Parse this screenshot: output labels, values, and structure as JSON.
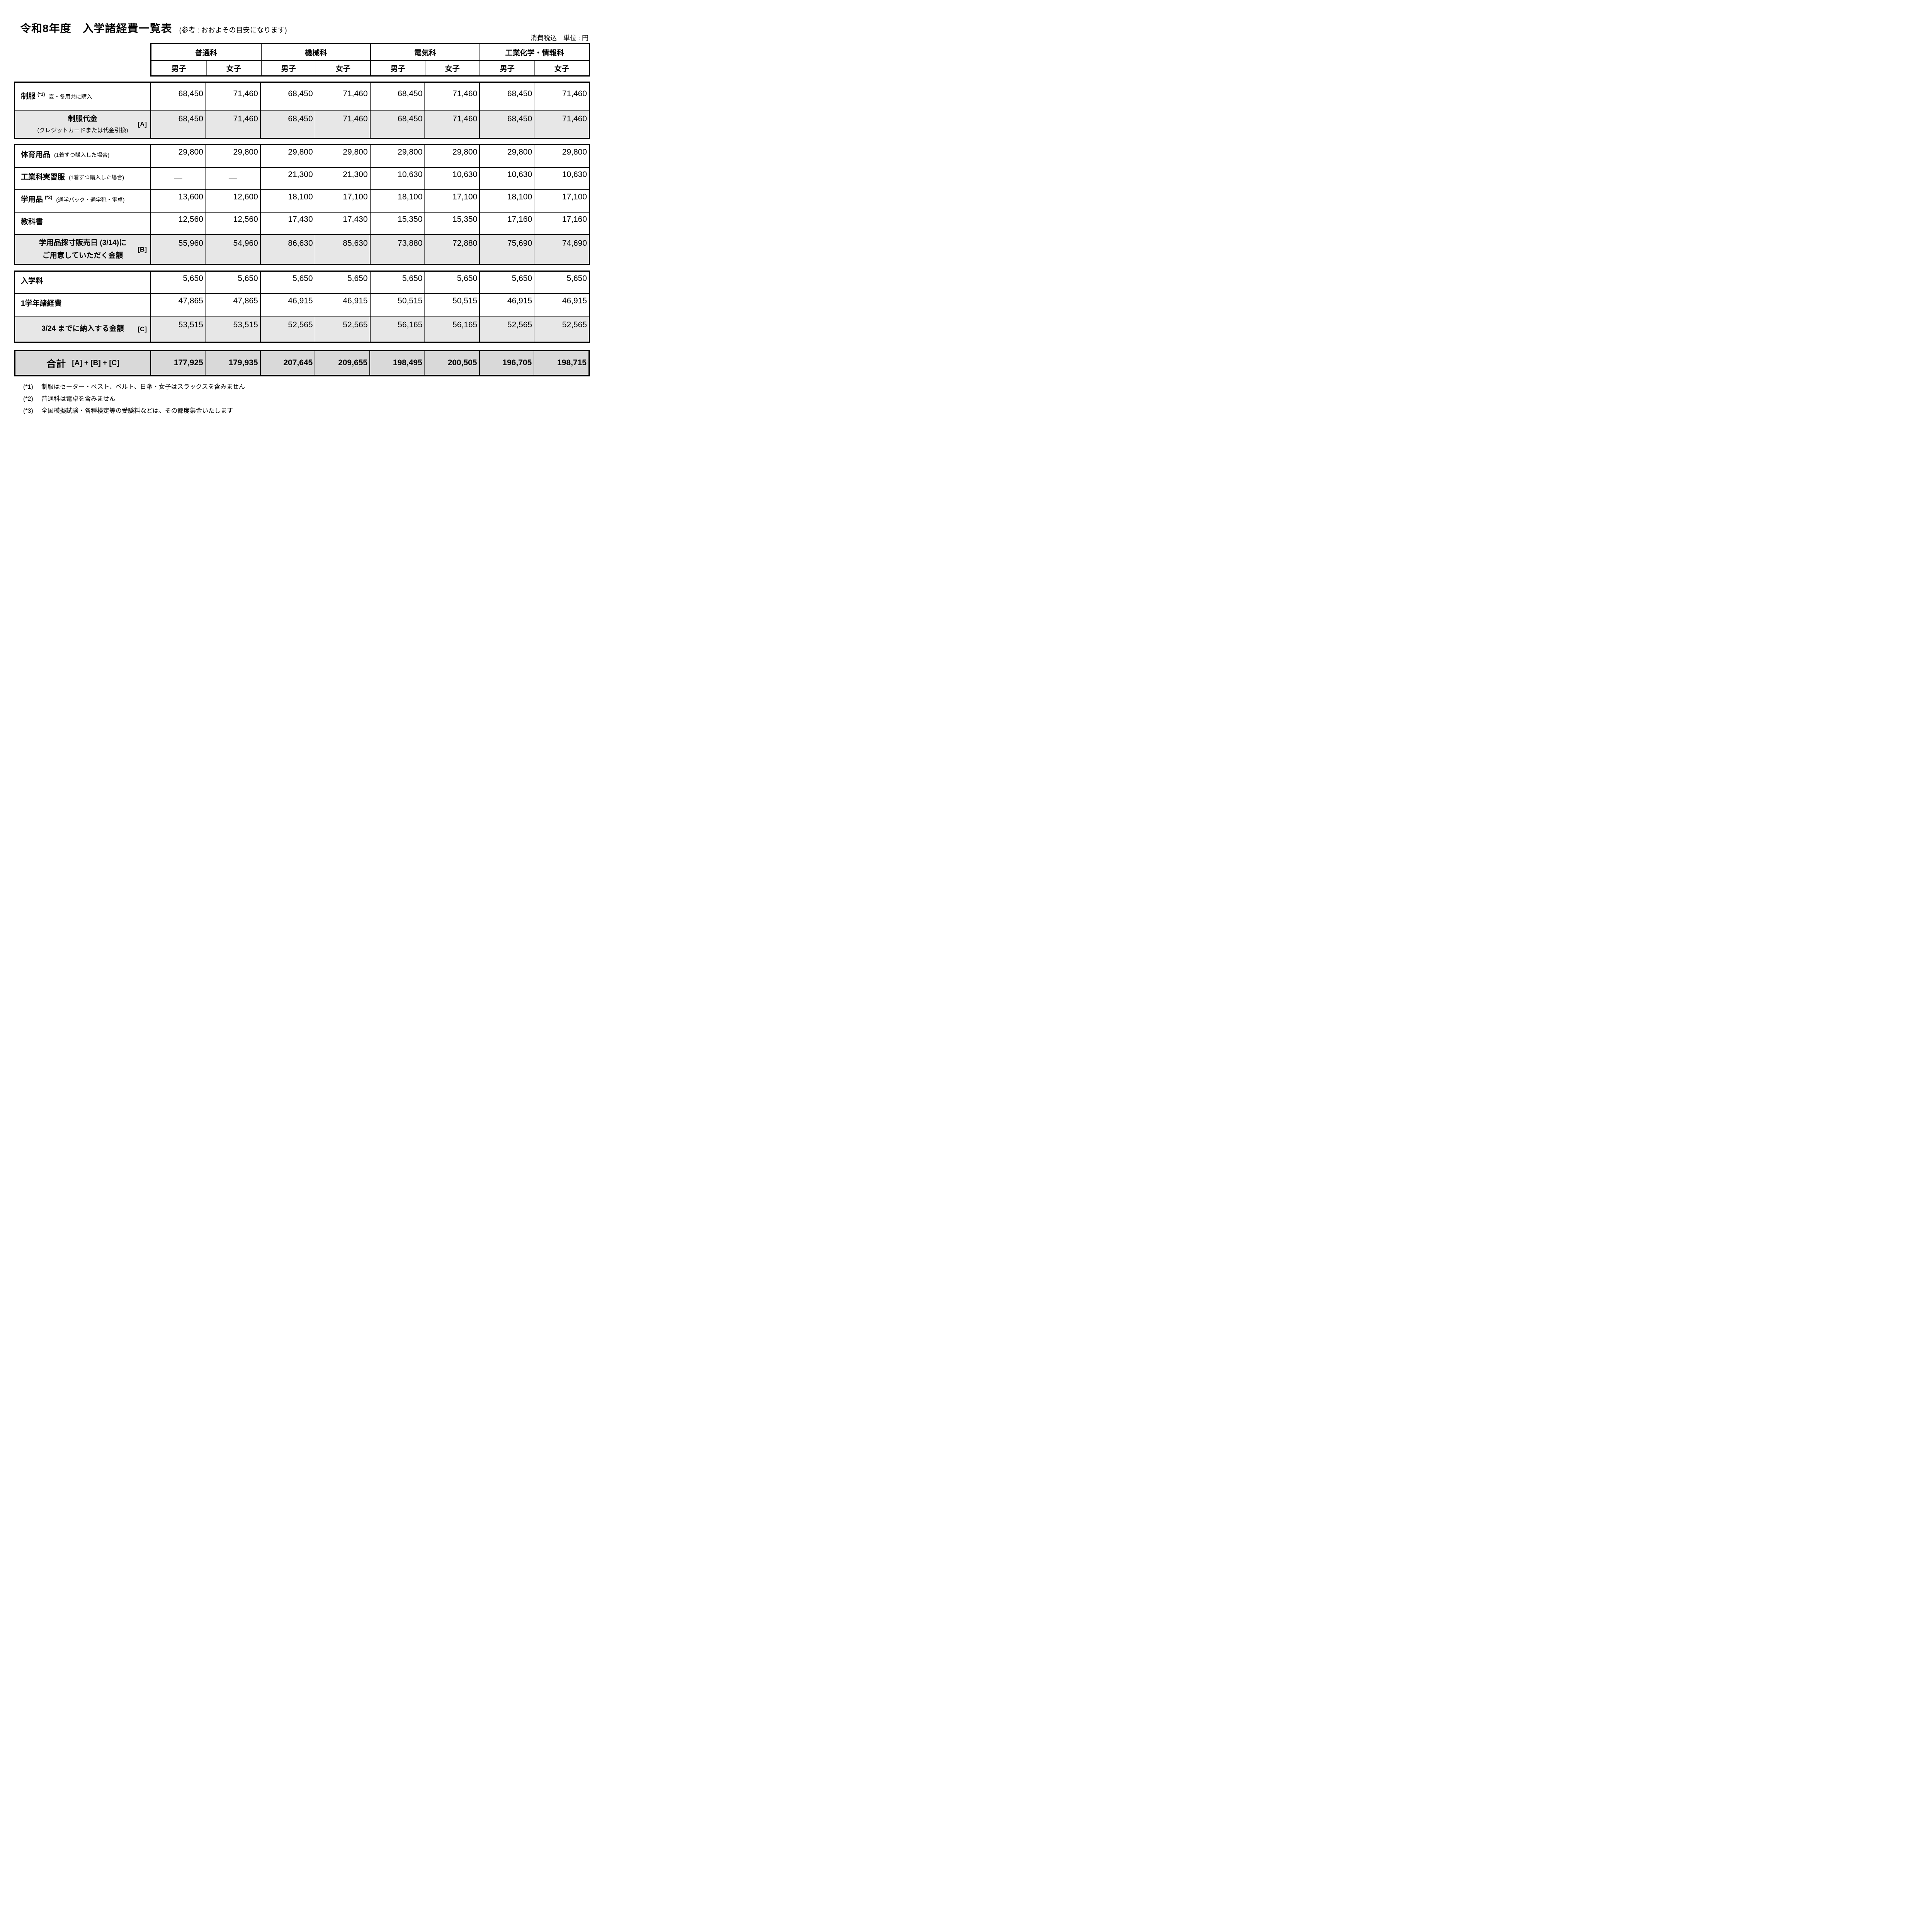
{
  "page": {
    "title": "令和8年度　入学諸経費一覧表",
    "subtitle": "(参考 : おおよその目安になります)",
    "tax_note": "消費税込　単位 : 円"
  },
  "header": {
    "departments": [
      "普通科",
      "機械科",
      "電気科",
      "工業化学・情報科"
    ],
    "genders": [
      "男子",
      "女子",
      "男子",
      "女子",
      "男子",
      "女子",
      "男子",
      "女子"
    ]
  },
  "uniform": {
    "item": {
      "label": "制服",
      "sup": "(*1)",
      "note": "夏・冬用共に購入",
      "values": [
        "68,450",
        "71,460",
        "68,450",
        "71,460",
        "68,450",
        "71,460",
        "68,450",
        "71,460"
      ]
    },
    "subtotal": {
      "label": "制服代金",
      "note": "(クレジットカードまたは代金引換)",
      "tag": "[A]",
      "values": [
        "68,450",
        "71,460",
        "68,450",
        "71,460",
        "68,450",
        "71,460",
        "68,450",
        "71,460"
      ]
    }
  },
  "supplies": {
    "rows": [
      {
        "label": "体育用品",
        "note": "(1着ずつ購入した場合)",
        "values": [
          "29,800",
          "29,800",
          "29,800",
          "29,800",
          "29,800",
          "29,800",
          "29,800",
          "29,800"
        ]
      },
      {
        "label": "工業科実習服",
        "note": "(1着ずつ購入した場合)",
        "values": [
          "—",
          "—",
          "21,300",
          "21,300",
          "10,630",
          "10,630",
          "10,630",
          "10,630"
        ]
      },
      {
        "label": "学用品",
        "sup": "(*2)",
        "note": "(通学バック・通学靴・電卓)",
        "values": [
          "13,600",
          "12,600",
          "18,100",
          "17,100",
          "18,100",
          "17,100",
          "18,100",
          "17,100"
        ]
      },
      {
        "label": "教科書",
        "values": [
          "12,560",
          "12,560",
          "17,430",
          "17,430",
          "15,350",
          "15,350",
          "17,160",
          "17,160"
        ]
      }
    ],
    "subtotal": {
      "label_line1": "学用品採寸販売日 (3/14)に",
      "label_line2": "ご用意していただく金額",
      "tag": "[B]",
      "values": [
        "55,960",
        "54,960",
        "86,630",
        "85,630",
        "73,880",
        "72,880",
        "75,690",
        "74,690"
      ]
    }
  },
  "enrollment": {
    "rows": [
      {
        "label": "入学料",
        "values": [
          "5,650",
          "5,650",
          "5,650",
          "5,650",
          "5,650",
          "5,650",
          "5,650",
          "5,650"
        ]
      },
      {
        "label": "1学年諸経費",
        "values": [
          "47,865",
          "47,865",
          "46,915",
          "46,915",
          "50,515",
          "50,515",
          "46,915",
          "46,915"
        ]
      }
    ],
    "subtotal": {
      "label": "3/24 までに納入する金額",
      "tag": "[C]",
      "values": [
        "53,515",
        "53,515",
        "52,565",
        "52,565",
        "56,165",
        "56,165",
        "52,565",
        "52,565"
      ]
    }
  },
  "total": {
    "label": "合計",
    "formula": "[A] + [B] + [C]",
    "values": [
      "177,925",
      "179,935",
      "207,645",
      "209,655",
      "198,495",
      "200,505",
      "196,705",
      "198,715"
    ]
  },
  "footnotes": [
    {
      "marker": "(*1)",
      "text": "制服はセーター・ベスト、ベルト、日傘・女子はスラックスを含みません"
    },
    {
      "marker": "(*2)",
      "text": "普通科は電卓を含みません"
    },
    {
      "marker": "(*3)",
      "text": "全国模擬試験・各種検定等の受験料などは、その都度集金いたします"
    }
  ]
}
